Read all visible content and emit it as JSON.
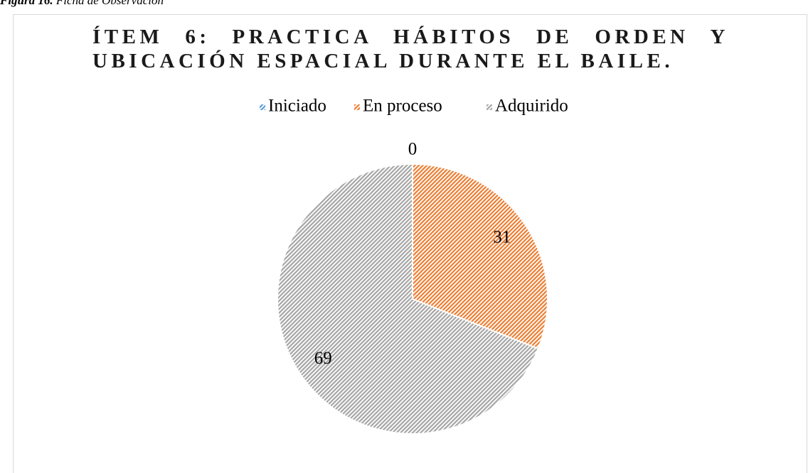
{
  "caption": {
    "label": "Figura 16.",
    "text": "Ficha de Observación"
  },
  "chart_data": {
    "type": "pie",
    "title": "ÍTEM 6: PRACTICA HÁBITOS DE ORDEN Y UBICACIÓN ESPACIAL DURANTE EL BAILE.",
    "categories": [
      "Iniciado",
      "En proceso",
      "Adquirido"
    ],
    "values": [
      0,
      31,
      69
    ],
    "colors": [
      "#5b9bd5",
      "#ed7d31",
      "#a5a5a5"
    ],
    "legend": "top"
  }
}
